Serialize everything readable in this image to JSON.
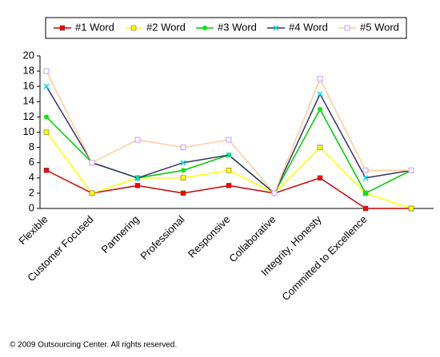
{
  "chart_data": {
    "type": "line",
    "categories": [
      "Flexible",
      "Customer Focused",
      "Partnering",
      "Professional",
      "Responsive",
      "Collaborative",
      "Integrity, Honesty",
      "Committed to Excellence",
      null
    ],
    "series": [
      {
        "name": "#1 Word",
        "color": "#ff0000",
        "marker": "square",
        "values": [
          5,
          2,
          3,
          2,
          3,
          2,
          4,
          0,
          0
        ]
      },
      {
        "name": "#2 Word",
        "color": "#ffff00",
        "marker": "square",
        "values": [
          10,
          2,
          4,
          4,
          5,
          2,
          8,
          2,
          0
        ]
      },
      {
        "name": "#3 Word",
        "color": "#00ee00",
        "marker": "circle",
        "values": [
          12,
          6,
          4,
          5,
          7,
          2,
          13,
          2,
          5
        ]
      },
      {
        "name": "#4 Word",
        "color": "#00dddd",
        "marker": "x",
        "values": [
          16,
          6,
          4,
          6,
          7,
          2,
          15,
          4,
          5
        ]
      },
      {
        "name": "#5 Word",
        "color": "#cc99ff",
        "marker": "open-square",
        "values": [
          18,
          6,
          9,
          8,
          9,
          2,
          17,
          5,
          5
        ]
      }
    ],
    "line_colors": [
      "#cc0000",
      "#ffff00",
      "#00cc00",
      "#333366",
      "#ffcc99"
    ],
    "ylim": [
      0,
      20
    ],
    "yticks": [
      0,
      2,
      4,
      6,
      8,
      10,
      12,
      14,
      16,
      18,
      20
    ],
    "grid": false,
    "legend": "top",
    "footer": "© 2009 Outsourcing Center. All rights reserved."
  }
}
